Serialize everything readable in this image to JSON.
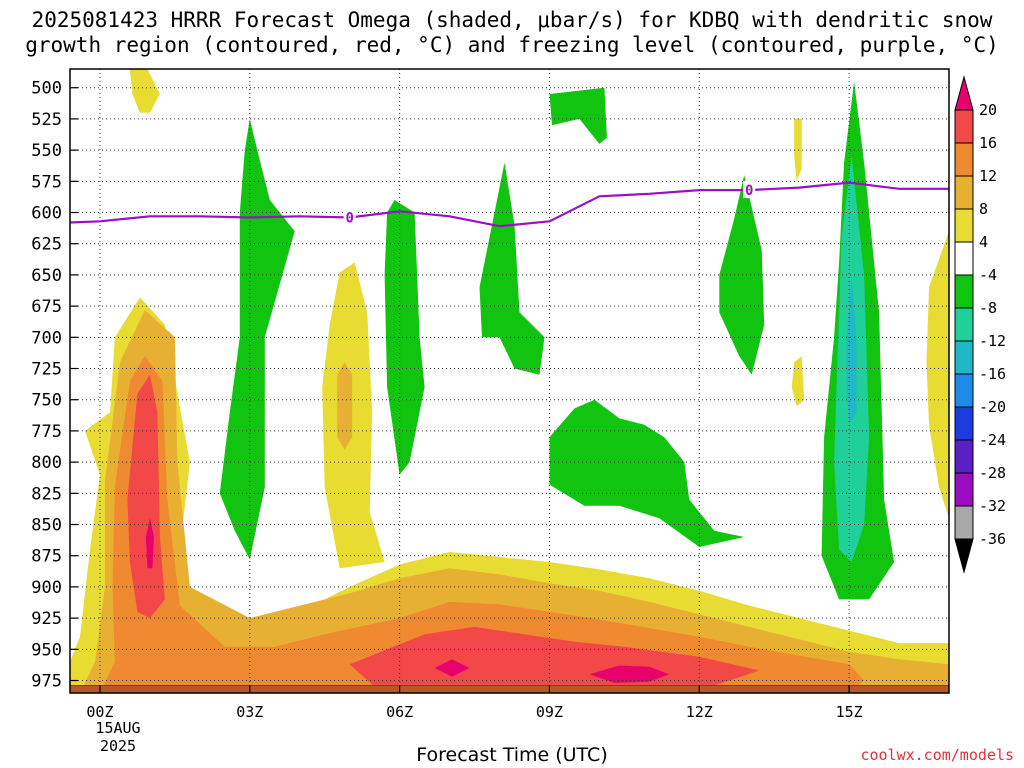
{
  "title_line1": "2025081423 HRRR Forecast Omega (shaded, μbar/s) for KDBQ with dendritic snow",
  "title_line2": "growth region (contoured, red, °C) and freezing level (contoured, purple, °C)",
  "xlabel": "Forecast Time (UTC)",
  "credit": "coolwx.com/models",
  "date_line1": "15AUG",
  "date_line2": "2025",
  "chart_data": {
    "type": "heatmap",
    "x_ticks": [
      "00Z",
      "03Z",
      "06Z",
      "09Z",
      "12Z",
      "15Z"
    ],
    "x_range_hours": [
      -0.6,
      17.0
    ],
    "y_ticks": [
      500,
      525,
      550,
      575,
      600,
      625,
      650,
      675,
      700,
      725,
      750,
      775,
      800,
      825,
      850,
      875,
      900,
      925,
      950,
      975
    ],
    "y_range_mb": [
      485,
      985
    ],
    "colorbar": {
      "levels": [
        20,
        16,
        12,
        8,
        4,
        -4,
        -8,
        -12,
        -16,
        -20,
        -24,
        -28,
        -32,
        -36
      ],
      "colors": [
        "#e8006c",
        "#f34848",
        "#ef8a30",
        "#e8b032",
        "#e8dc32",
        "#ffffff",
        "#10c410",
        "#20d09a",
        "#20b8c8",
        "#1c8ce8",
        "#1c3ce0",
        "#5a20c8",
        "#9c0cc0",
        "#a8a8a8",
        "#000000"
      ]
    },
    "freezing_level": {
      "label": "0",
      "color": "#9a10c8",
      "points": [
        [
          -0.6,
          608
        ],
        [
          0,
          607
        ],
        [
          1,
          603
        ],
        [
          2,
          603
        ],
        [
          3,
          604
        ],
        [
          4,
          603
        ],
        [
          5,
          604
        ],
        [
          6,
          599
        ],
        [
          7,
          603
        ],
        [
          8,
          611
        ],
        [
          9,
          607
        ],
        [
          10,
          587
        ],
        [
          11,
          585
        ],
        [
          12,
          582
        ],
        [
          13,
          582
        ],
        [
          14,
          580
        ],
        [
          15,
          576
        ],
        [
          16,
          581
        ],
        [
          17,
          581
        ]
      ]
    },
    "omega_regions": [
      {
        "level": 4,
        "points": [
          [
            0.6,
            485
          ],
          [
            0.95,
            485
          ],
          [
            1.2,
            505
          ],
          [
            1.0,
            520
          ],
          [
            0.8,
            520
          ],
          [
            0.65,
            505
          ]
        ]
      },
      {
        "level": 4,
        "points": [
          [
            -0.3,
            775
          ],
          [
            0.2,
            760
          ],
          [
            0.3,
            700
          ],
          [
            0.8,
            668
          ],
          [
            1.3,
            690
          ],
          [
            1.8,
            800
          ],
          [
            1.6,
            870
          ],
          [
            1.9,
            920
          ],
          [
            3.5,
            930
          ],
          [
            5,
            900
          ],
          [
            6,
            882
          ],
          [
            7,
            872
          ],
          [
            8,
            876
          ],
          [
            9,
            880
          ],
          [
            10,
            886
          ],
          [
            11,
            893
          ],
          [
            12,
            903
          ],
          [
            13,
            915
          ],
          [
            14,
            925
          ],
          [
            15,
            935
          ],
          [
            16,
            945
          ],
          [
            17,
            945
          ],
          [
            17,
            985
          ],
          [
            -0.6,
            985
          ],
          [
            -0.6,
            960
          ],
          [
            -0.4,
            940
          ],
          [
            -0.2,
            870
          ],
          [
            0,
            810
          ]
        ]
      },
      {
        "level": 4,
        "points": [
          [
            4.6,
            690
          ],
          [
            4.8,
            648
          ],
          [
            5.1,
            640
          ],
          [
            5.35,
            680
          ],
          [
            5.45,
            760
          ],
          [
            5.4,
            840
          ],
          [
            5.7,
            880
          ],
          [
            4.8,
            885
          ],
          [
            4.5,
            820
          ],
          [
            4.45,
            740
          ]
        ]
      },
      {
        "level": 4,
        "points": [
          [
            16.6,
            660
          ],
          [
            17.0,
            615
          ],
          [
            17.0,
            845
          ],
          [
            16.8,
            820
          ],
          [
            16.6,
            770
          ],
          [
            16.55,
            720
          ]
        ]
      },
      {
        "level": 4,
        "points": [
          [
            13.9,
            525
          ],
          [
            14.05,
            525
          ],
          [
            14.05,
            565
          ],
          [
            13.95,
            575
          ],
          [
            13.9,
            555
          ]
        ]
      },
      {
        "level": 4,
        "points": [
          [
            13.9,
            720
          ],
          [
            14.05,
            715
          ],
          [
            14.1,
            750
          ],
          [
            13.95,
            755
          ],
          [
            13.85,
            740
          ]
        ]
      },
      {
        "level": 8,
        "points": [
          [
            0.1,
            815
          ],
          [
            0.4,
            720
          ],
          [
            0.9,
            678
          ],
          [
            1.5,
            700
          ],
          [
            1.55,
            800
          ],
          [
            1.8,
            900
          ],
          [
            3,
            925
          ],
          [
            5,
            905
          ],
          [
            6,
            893
          ],
          [
            7,
            885
          ],
          [
            8,
            890
          ],
          [
            9,
            897
          ],
          [
            10,
            903
          ],
          [
            11,
            912
          ],
          [
            12,
            922
          ],
          [
            13,
            932
          ],
          [
            14,
            942
          ],
          [
            15,
            952
          ],
          [
            16,
            958
          ],
          [
            17,
            962
          ],
          [
            17,
            985
          ],
          [
            -0.4,
            985
          ],
          [
            -0.1,
            960
          ],
          [
            0.1,
            900
          ]
        ]
      },
      {
        "level": 8,
        "points": [
          [
            4.75,
            730
          ],
          [
            4.9,
            720
          ],
          [
            5.05,
            730
          ],
          [
            5.05,
            780
          ],
          [
            4.9,
            790
          ],
          [
            4.75,
            780
          ]
        ]
      },
      {
        "level": 12,
        "points": [
          [
            0.3,
            820
          ],
          [
            0.6,
            735
          ],
          [
            0.9,
            715
          ],
          [
            1.25,
            735
          ],
          [
            1.35,
            830
          ],
          [
            1.6,
            915
          ],
          [
            2.5,
            948
          ],
          [
            3.5,
            948
          ],
          [
            4.5,
            938
          ],
          [
            6,
            925
          ],
          [
            7,
            912
          ],
          [
            8,
            914
          ],
          [
            9,
            920
          ],
          [
            10,
            926
          ],
          [
            11,
            933
          ],
          [
            12,
            940
          ],
          [
            13,
            948
          ],
          [
            14,
            955
          ],
          [
            15,
            962
          ],
          [
            15.3,
            975
          ],
          [
            15,
            985
          ],
          [
            0,
            985
          ],
          [
            0.3,
            960
          ],
          [
            0.25,
            900
          ]
        ]
      },
      {
        "level": 16,
        "points": [
          [
            0.55,
            830
          ],
          [
            0.75,
            745
          ],
          [
            1.0,
            730
          ],
          [
            1.15,
            760
          ],
          [
            1.2,
            860
          ],
          [
            1.3,
            910
          ],
          [
            1.0,
            925
          ],
          [
            0.75,
            920
          ],
          [
            0.6,
            880
          ]
        ]
      },
      {
        "level": 16,
        "points": [
          [
            5,
            962
          ],
          [
            6.5,
            938
          ],
          [
            7.5,
            932
          ],
          [
            8.5,
            938
          ],
          [
            9.5,
            944
          ],
          [
            10.5,
            948
          ],
          [
            12,
            956
          ],
          [
            13.2,
            967
          ],
          [
            12,
            983
          ],
          [
            8,
            983
          ],
          [
            5.5,
            980
          ]
        ]
      },
      {
        "level": 20,
        "points": [
          [
            0.92,
            860
          ],
          [
            1.0,
            845
          ],
          [
            1.08,
            860
          ],
          [
            1.05,
            885
          ],
          [
            0.95,
            885
          ]
        ]
      },
      {
        "level": 20,
        "points": [
          [
            6.7,
            965
          ],
          [
            7.05,
            958
          ],
          [
            7.4,
            965
          ],
          [
            7.05,
            972
          ]
        ]
      },
      {
        "level": 20,
        "points": [
          [
            9.8,
            970
          ],
          [
            10.4,
            963
          ],
          [
            11.0,
            964
          ],
          [
            11.4,
            970
          ],
          [
            11.0,
            976
          ],
          [
            10.3,
            977
          ]
        ]
      },
      {
        "level": -4,
        "points": [
          [
            2.9,
            550
          ],
          [
            3.0,
            525
          ],
          [
            3.15,
            550
          ],
          [
            3.4,
            590
          ],
          [
            3.9,
            615
          ],
          [
            3.3,
            700
          ],
          [
            3.3,
            820
          ],
          [
            3.0,
            878
          ],
          [
            2.7,
            855
          ],
          [
            2.4,
            825
          ],
          [
            2.6,
            760
          ],
          [
            2.8,
            700
          ],
          [
            2.8,
            600
          ]
        ]
      },
      {
        "level": -4,
        "points": [
          [
            5.75,
            600
          ],
          [
            5.9,
            590
          ],
          [
            6.3,
            600
          ],
          [
            6.4,
            700
          ],
          [
            6.5,
            740
          ],
          [
            6.2,
            800
          ],
          [
            6.0,
            810
          ],
          [
            5.75,
            740
          ],
          [
            5.7,
            650
          ]
        ]
      },
      {
        "level": -4,
        "points": [
          [
            7.6,
            660
          ],
          [
            7.9,
            600
          ],
          [
            8.1,
            560
          ],
          [
            8.3,
            610
          ],
          [
            8.4,
            680
          ],
          [
            8.9,
            700
          ],
          [
            8.8,
            730
          ],
          [
            8.3,
            725
          ],
          [
            8.0,
            700
          ],
          [
            7.65,
            700
          ]
        ]
      },
      {
        "level": -4,
        "points": [
          [
            9.0,
            505
          ],
          [
            10.1,
            500
          ],
          [
            10.15,
            540
          ],
          [
            10.0,
            545
          ],
          [
            9.6,
            525
          ],
          [
            9.05,
            530
          ]
        ]
      },
      {
        "level": -4,
        "points": [
          [
            9.0,
            780
          ],
          [
            9.5,
            757
          ],
          [
            9.9,
            750
          ],
          [
            10.4,
            765
          ],
          [
            10.9,
            770
          ],
          [
            11.3,
            780
          ],
          [
            11.7,
            800
          ],
          [
            11.8,
            830
          ],
          [
            12.3,
            855
          ],
          [
            12.9,
            860
          ],
          [
            12.0,
            868
          ],
          [
            11.2,
            845
          ],
          [
            10.4,
            835
          ],
          [
            9.7,
            835
          ],
          [
            9.0,
            818
          ]
        ]
      },
      {
        "level": -4,
        "points": [
          [
            12.4,
            650
          ],
          [
            12.7,
            605
          ],
          [
            12.9,
            570
          ],
          [
            13.25,
            630
          ],
          [
            13.3,
            690
          ],
          [
            13.05,
            730
          ],
          [
            12.8,
            715
          ],
          [
            12.4,
            680
          ]
        ]
      },
      {
        "level": -4,
        "points": [
          [
            14.9,
            560
          ],
          [
            15.1,
            495
          ],
          [
            15.3,
            560
          ],
          [
            15.6,
            680
          ],
          [
            15.7,
            830
          ],
          [
            15.9,
            880
          ],
          [
            15.4,
            910
          ],
          [
            14.8,
            910
          ],
          [
            14.45,
            875
          ],
          [
            14.5,
            780
          ],
          [
            14.7,
            700
          ],
          [
            14.8,
            640
          ]
        ]
      },
      {
        "level": -8,
        "points": [
          [
            14.85,
            620
          ],
          [
            15.05,
            555
          ],
          [
            15.3,
            650
          ],
          [
            15.4,
            780
          ],
          [
            15.3,
            850
          ],
          [
            15.05,
            880
          ],
          [
            14.8,
            870
          ],
          [
            14.7,
            800
          ]
        ]
      },
      {
        "level": -12,
        "points": [
          [
            14.95,
            700
          ],
          [
            15.05,
            650
          ],
          [
            15.15,
            700
          ],
          [
            15.15,
            760
          ],
          [
            15.0,
            770
          ],
          [
            14.95,
            740
          ]
        ]
      }
    ],
    "ground": {
      "from_mb": 979,
      "color": "#b45a28",
      "top_color": "#8a3a10"
    }
  }
}
